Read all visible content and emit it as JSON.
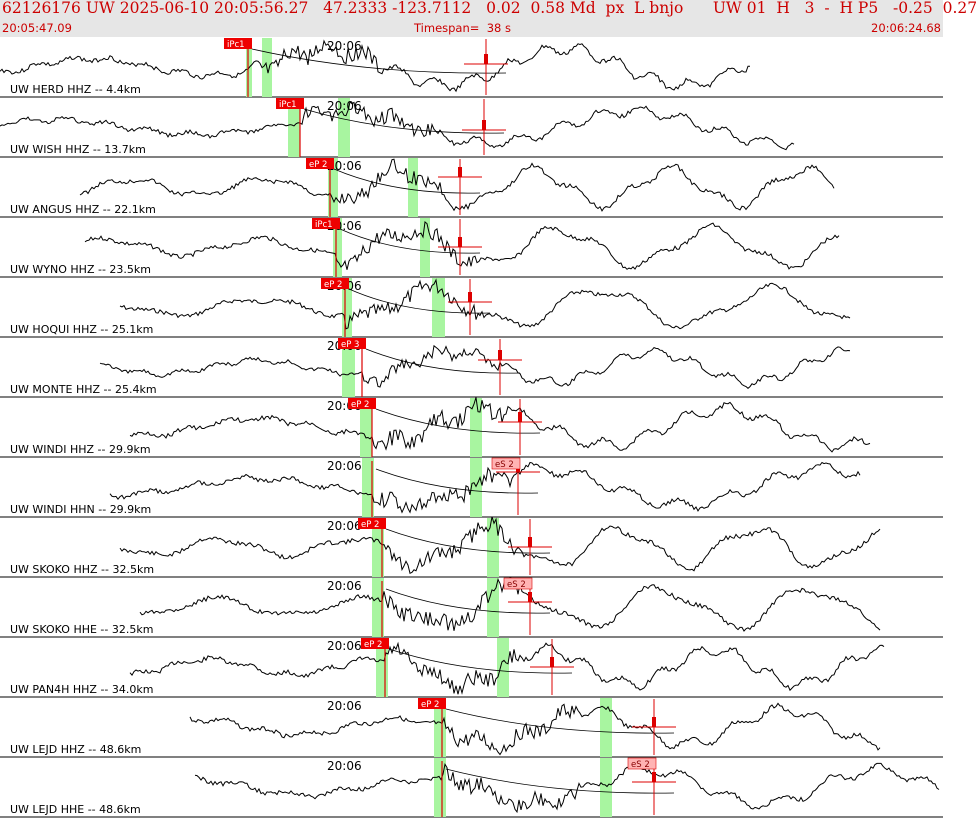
{
  "header": {
    "main_line": "62126176 UW 2025-06-10 20:05:56.27   47.2333 -123.7112   0.02  0.58 Md  px  L bnjo      UW 01  H   3  -  H P5   -0.25  0.27",
    "start_time": "20:05:47.09",
    "timespan": "Timespan=  38 s",
    "end_time": "20:06:24.68"
  },
  "time_tick_label": "20:06",
  "colors": {
    "background": "#ffffff",
    "header_bg": "#e6e6e6",
    "header_text": "#cc0000",
    "pick_red": "#dd0000",
    "pick_label_bg": "#ee0000",
    "emergent_label_bg": "#ffb3b3",
    "window_green": "#a8f5a0",
    "trace": "#000000"
  },
  "traces": [
    {
      "label": "UW HERD HHZ -- 4.4km",
      "picks": [
        "iPc1"
      ]
    },
    {
      "label": "UW WISH HHZ -- 13.7km",
      "picks": [
        "iPc1"
      ]
    },
    {
      "label": "UW ANGUS HHZ -- 22.1km",
      "picks": [
        "eP 2"
      ]
    },
    {
      "label": "UW WYNO HHZ -- 23.5km",
      "picks": [
        "iPc1"
      ]
    },
    {
      "label": "UW HOQUI HHZ -- 25.1km",
      "picks": [
        "eP 2"
      ]
    },
    {
      "label": "UW MONTE HHZ -- 25.4km",
      "picks": [
        "eP 3"
      ]
    },
    {
      "label": "UW WINDI HHZ -- 29.9km",
      "picks": [
        "eP 2"
      ]
    },
    {
      "label": "UW WINDI HHN -- 29.9km",
      "picks": [
        "eS 2"
      ]
    },
    {
      "label": "UW SKOKO HHZ -- 32.5km",
      "picks": [
        "eP 2"
      ]
    },
    {
      "label": "UW SKOKO HHE -- 32.5km",
      "picks": [
        "eS 2"
      ]
    },
    {
      "label": "UW PAN4H HHZ -- 34.0km",
      "picks": [
        "eP 2"
      ]
    },
    {
      "label": "UW LEJD HHZ -- 48.6km",
      "picks": [
        "eP 2"
      ]
    },
    {
      "label": "UW LEJD HHE -- 48.6km",
      "picks": [
        "eS 2"
      ]
    }
  ]
}
